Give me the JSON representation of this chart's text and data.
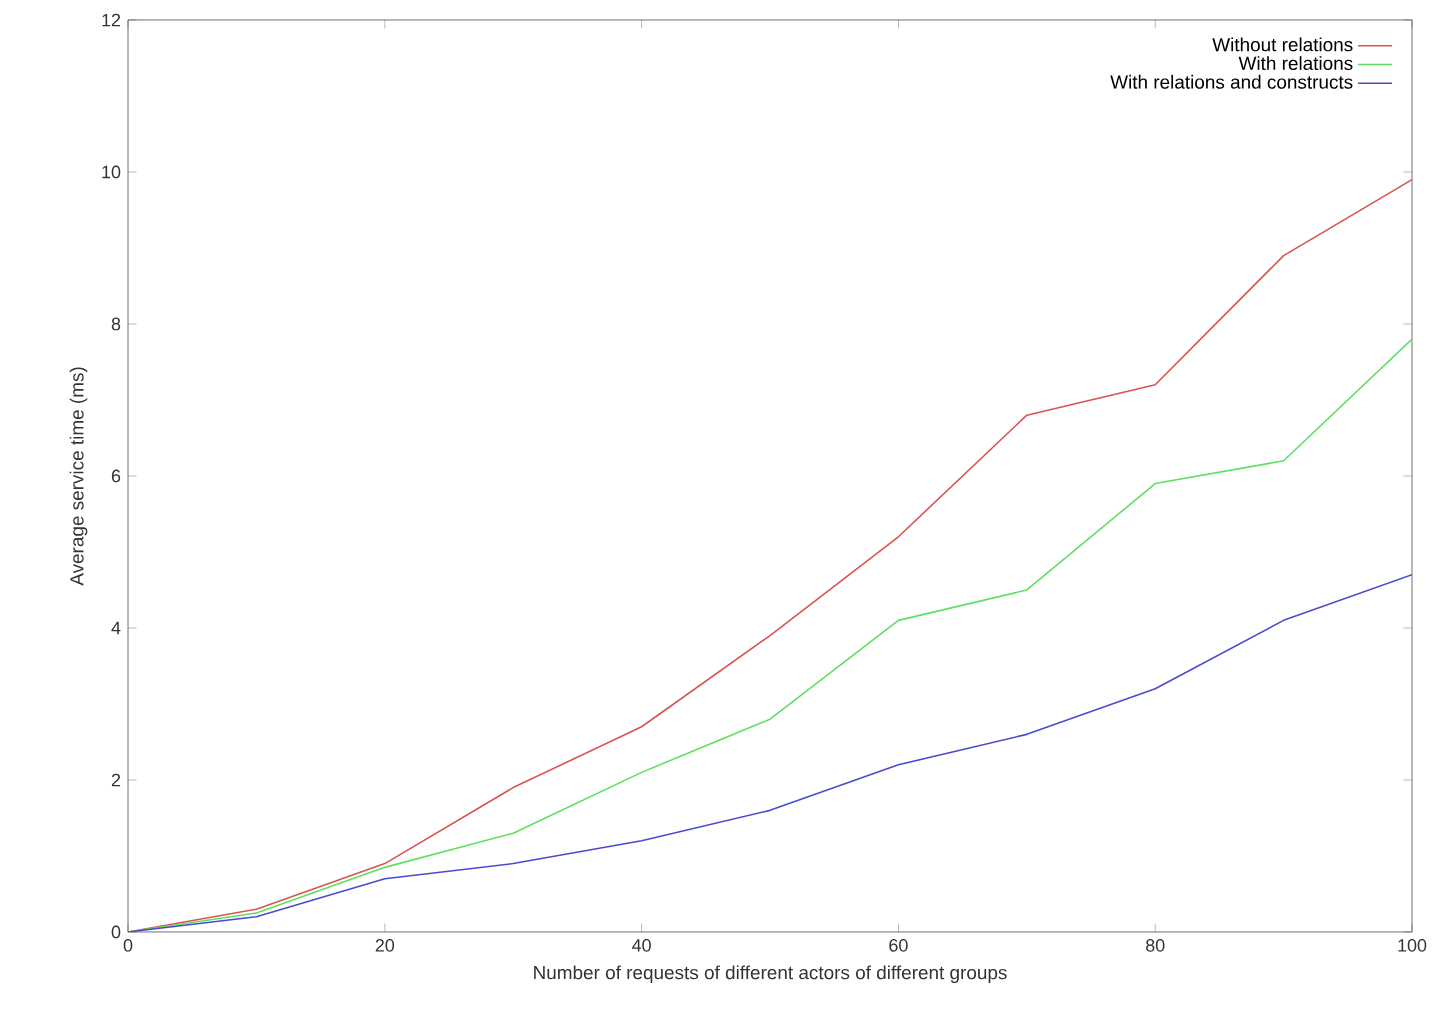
{
  "chart_data": {
    "type": "line",
    "xlabel": "Number of requests of different actors of different groups",
    "ylabel": "Average service time (ms)",
    "x": [
      0,
      10,
      20,
      30,
      40,
      50,
      60,
      70,
      80,
      90,
      100
    ],
    "series": [
      {
        "name": "Without relations",
        "color": "#d9534f",
        "values": [
          0,
          0.3,
          0.9,
          1.9,
          2.7,
          3.9,
          5.2,
          6.8,
          7.2,
          8.9,
          9.9
        ]
      },
      {
        "name": "With relations",
        "color": "#5ee05e",
        "values": [
          0,
          0.25,
          0.85,
          1.3,
          2.1,
          2.8,
          4.1,
          4.5,
          5.9,
          6.2,
          7.8
        ]
      },
      {
        "name": "With relations and constructs",
        "color": "#4a4ad0",
        "values": [
          0,
          0.2,
          0.7,
          0.9,
          1.2,
          1.6,
          2.2,
          2.6,
          3.2,
          4.1,
          4.7
        ]
      }
    ],
    "xlim": [
      0,
      100
    ],
    "ylim": [
      0,
      12
    ],
    "xticks": [
      0,
      20,
      40,
      60,
      80,
      100
    ],
    "yticks": [
      0,
      2,
      4,
      6,
      8,
      10,
      12
    ],
    "legend": "top right",
    "grid": false,
    "marker": "none",
    "line_style": "solid"
  }
}
